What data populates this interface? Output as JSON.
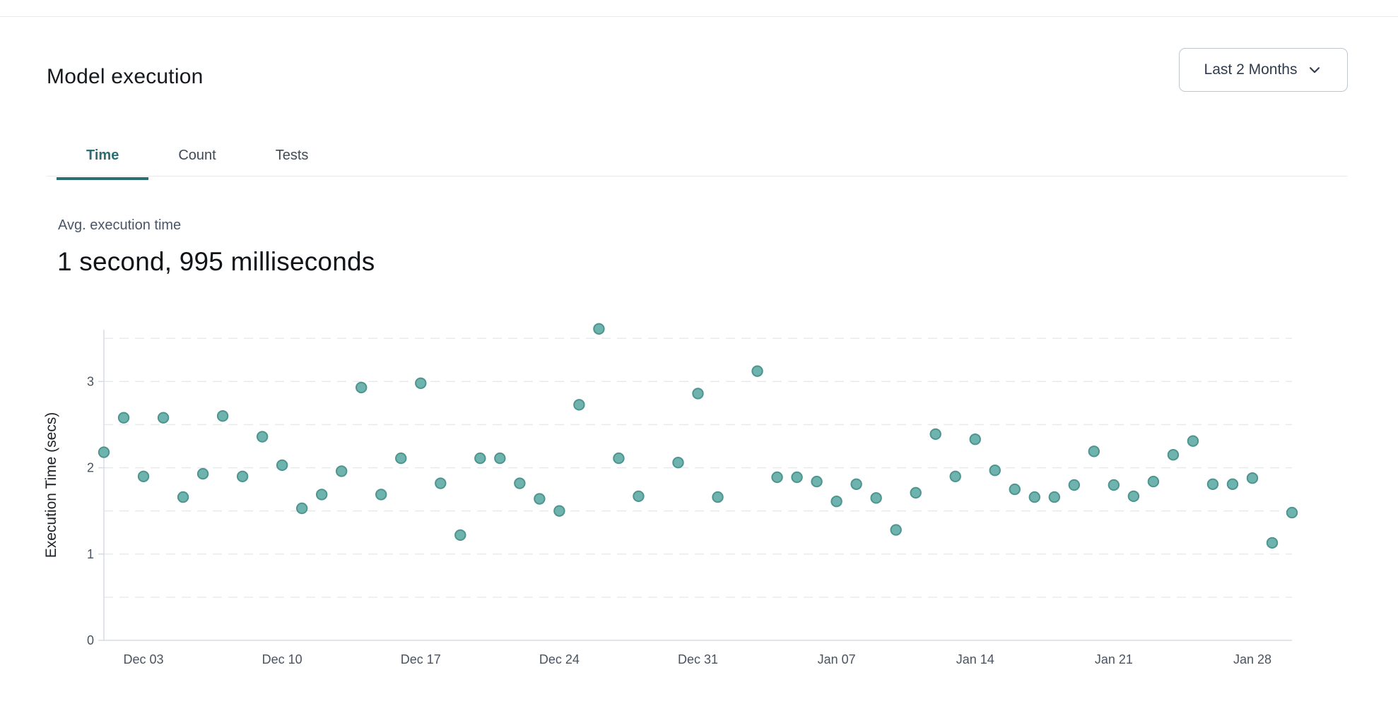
{
  "header": {
    "title": "Model execution",
    "range_selector": {
      "label": "Last 2 Months"
    }
  },
  "tabs": [
    {
      "label": "Time",
      "active": true
    },
    {
      "label": "Count",
      "active": false
    },
    {
      "label": "Tests",
      "active": false
    }
  ],
  "stat": {
    "label": "Avg. execution time",
    "value": "1 second, 995 milliseconds"
  },
  "chart_data": {
    "type": "scatter",
    "title": "",
    "xlabel": "",
    "ylabel": "Execution Time (secs)",
    "ylim": [
      0,
      3.6
    ],
    "yticks": [
      0,
      1,
      2,
      3
    ],
    "grid": {
      "horizontal": true,
      "interval": 0.5,
      "style": "dashed",
      "max_line": 3.5
    },
    "legend": "none",
    "x_domain": {
      "start_label": "Dec 01",
      "end_label": "Jan 30",
      "start_day": 0,
      "end_day": 60
    },
    "xticks": [
      {
        "label": "Dec 03",
        "day": 2
      },
      {
        "label": "Dec 10",
        "day": 9
      },
      {
        "label": "Dec 17",
        "day": 16
      },
      {
        "label": "Dec 24",
        "day": 23
      },
      {
        "label": "Dec 31",
        "day": 30
      },
      {
        "label": "Jan 07",
        "day": 37
      },
      {
        "label": "Jan 14",
        "day": 44
      },
      {
        "label": "Jan 21",
        "day": 51
      },
      {
        "label": "Jan 28",
        "day": 58
      }
    ],
    "points": [
      {
        "date": "Dec 01",
        "day": 0,
        "value": 2.18
      },
      {
        "date": "Dec 02",
        "day": 1,
        "value": 2.58
      },
      {
        "date": "Dec 03",
        "day": 2,
        "value": 1.9
      },
      {
        "date": "Dec 04",
        "day": 3,
        "value": 2.58
      },
      {
        "date": "Dec 05",
        "day": 4,
        "value": 1.66
      },
      {
        "date": "Dec 06",
        "day": 5,
        "value": 1.93
      },
      {
        "date": "Dec 07",
        "day": 6,
        "value": 2.6
      },
      {
        "date": "Dec 08",
        "day": 7,
        "value": 1.9
      },
      {
        "date": "Dec 09",
        "day": 8,
        "value": 2.36
      },
      {
        "date": "Dec 10",
        "day": 9,
        "value": 2.03
      },
      {
        "date": "Dec 11",
        "day": 10,
        "value": 1.53
      },
      {
        "date": "Dec 12",
        "day": 11,
        "value": 1.69
      },
      {
        "date": "Dec 13",
        "day": 12,
        "value": 1.96
      },
      {
        "date": "Dec 14",
        "day": 13,
        "value": 2.93
      },
      {
        "date": "Dec 15",
        "day": 14,
        "value": 1.69
      },
      {
        "date": "Dec 16",
        "day": 15,
        "value": 2.11
      },
      {
        "date": "Dec 17",
        "day": 16,
        "value": 2.98
      },
      {
        "date": "Dec 18",
        "day": 17,
        "value": 1.82
      },
      {
        "date": "Dec 19",
        "day": 18,
        "value": 1.22
      },
      {
        "date": "Dec 20",
        "day": 19,
        "value": 2.11
      },
      {
        "date": "Dec 21",
        "day": 20,
        "value": 2.11
      },
      {
        "date": "Dec 22",
        "day": 21,
        "value": 1.82
      },
      {
        "date": "Dec 23",
        "day": 22,
        "value": 1.64
      },
      {
        "date": "Dec 24",
        "day": 23,
        "value": 1.5
      },
      {
        "date": "Dec 25",
        "day": 24,
        "value": 2.73
      },
      {
        "date": "Dec 26",
        "day": 25,
        "value": 3.61
      },
      {
        "date": "Dec 27",
        "day": 26,
        "value": 2.11
      },
      {
        "date": "Dec 28",
        "day": 27,
        "value": 1.67
      },
      {
        "date": "Dec 30",
        "day": 29,
        "value": 2.06
      },
      {
        "date": "Dec 31",
        "day": 30,
        "value": 2.86
      },
      {
        "date": "Jan 01",
        "day": 31,
        "value": 1.66
      },
      {
        "date": "Jan 03",
        "day": 33,
        "value": 3.12
      },
      {
        "date": "Jan 04",
        "day": 34,
        "value": 1.89
      },
      {
        "date": "Jan 05",
        "day": 35,
        "value": 1.89
      },
      {
        "date": "Jan 06",
        "day": 36,
        "value": 1.84
      },
      {
        "date": "Jan 07",
        "day": 37,
        "value": 1.61
      },
      {
        "date": "Jan 08",
        "day": 38,
        "value": 1.81
      },
      {
        "date": "Jan 09",
        "day": 39,
        "value": 1.65
      },
      {
        "date": "Jan 10",
        "day": 40,
        "value": 1.28
      },
      {
        "date": "Jan 11",
        "day": 41,
        "value": 1.71
      },
      {
        "date": "Jan 12",
        "day": 42,
        "value": 2.39
      },
      {
        "date": "Jan 13",
        "day": 43,
        "value": 1.9
      },
      {
        "date": "Jan 14",
        "day": 44,
        "value": 2.33
      },
      {
        "date": "Jan 15",
        "day": 45,
        "value": 1.97
      },
      {
        "date": "Jan 16",
        "day": 46,
        "value": 1.75
      },
      {
        "date": "Jan 17",
        "day": 47,
        "value": 1.66
      },
      {
        "date": "Jan 18",
        "day": 48,
        "value": 1.66
      },
      {
        "date": "Jan 19",
        "day": 49,
        "value": 1.8
      },
      {
        "date": "Jan 20",
        "day": 50,
        "value": 2.19
      },
      {
        "date": "Jan 21",
        "day": 51,
        "value": 1.8
      },
      {
        "date": "Jan 22",
        "day": 52,
        "value": 1.67
      },
      {
        "date": "Jan 23",
        "day": 53,
        "value": 1.84
      },
      {
        "date": "Jan 24",
        "day": 54,
        "value": 2.15
      },
      {
        "date": "Jan 25",
        "day": 55,
        "value": 2.31
      },
      {
        "date": "Jan 26",
        "day": 56,
        "value": 1.81
      },
      {
        "date": "Jan 27",
        "day": 57,
        "value": 1.81
      },
      {
        "date": "Jan 28",
        "day": 58,
        "value": 1.88
      },
      {
        "date": "Jan 29",
        "day": 59,
        "value": 1.13
      },
      {
        "date": "Jan 30",
        "day": 60,
        "value": 1.48
      }
    ]
  },
  "colors": {
    "point_fill": "#6FB3AE",
    "point_stroke": "#4E948F",
    "accent_teal": "#2A6F74",
    "grid_line": "#E6E9EC",
    "axis_line": "#D7DBE0",
    "tick_text": "#4A5360",
    "button_border": "#BFC6CF",
    "button_text": "#2F3B4E",
    "separator": "#E7EAED"
  }
}
